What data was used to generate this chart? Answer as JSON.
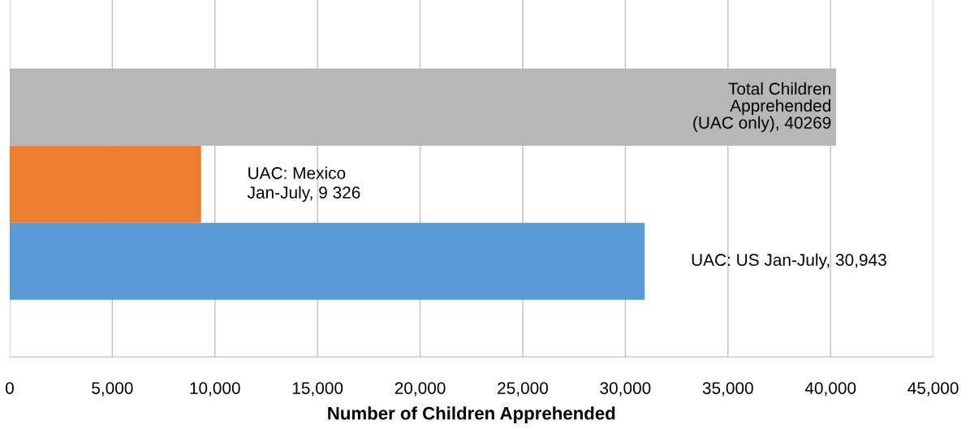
{
  "chart_data": {
    "type": "bar",
    "orientation": "horizontal",
    "xlabel": "Number of Children Apprehended",
    "categories": [
      null,
      null,
      null
    ],
    "values": [
      40269,
      9326,
      30943
    ],
    "colors": [
      "#b7b7b7",
      "#ed7d31",
      "#5b9bd5"
    ],
    "value_labels": [
      "Total Children\nApprehended\n(UAC only), 40269",
      "UAC: Mexico\nJan-July, 9 326",
      "UAC: US Jan-July, 30,943"
    ],
    "xlim": [
      0,
      45000
    ],
    "xticks": [
      0,
      {
        "value": 5000,
        "label": "5,000"
      },
      {
        "value": 10000,
        "label": "10,000"
      },
      {
        "value": 15000,
        "label": "15,000"
      },
      {
        "value": 20000,
        "label": "20,000"
      },
      {
        "value": 25000,
        "label": "25,000"
      },
      {
        "value": 30000,
        "label": "30,000"
      },
      {
        "value": 35000,
        "label": "35,000"
      },
      {
        "value": 40000,
        "label": "40,000"
      },
      {
        "value": 45000,
        "label": "45,000"
      }
    ],
    "grid": "x",
    "tick_labels": "x"
  }
}
